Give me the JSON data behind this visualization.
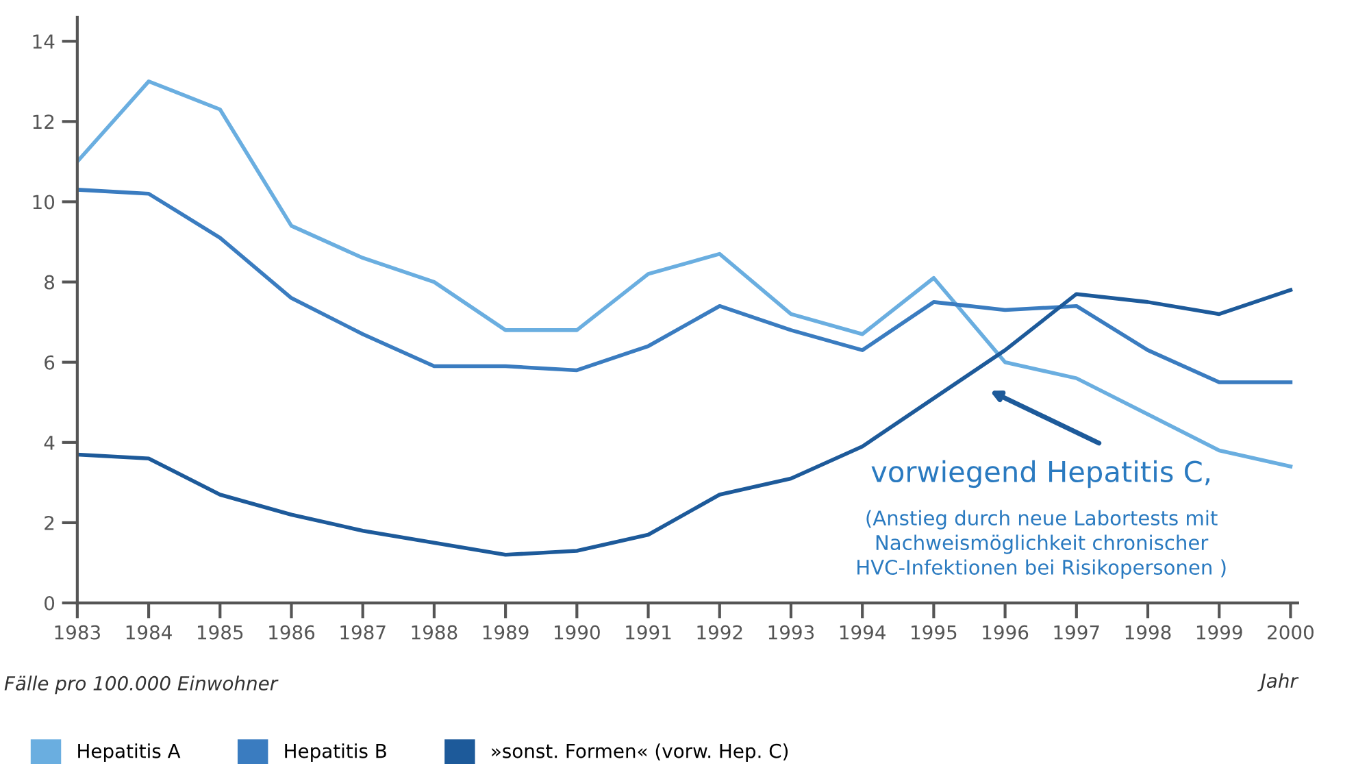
{
  "chart_data": {
    "type": "line",
    "x": [
      1983,
      1984,
      1985,
      1986,
      1987,
      1988,
      1989,
      1990,
      1991,
      1992,
      1993,
      1994,
      1995,
      1996,
      1997,
      1998,
      1999,
      2000
    ],
    "series": [
      {
        "name": "Hepatitis A",
        "color": "#6aaee0",
        "values": [
          11.0,
          13.0,
          12.3,
          9.4,
          8.6,
          8.0,
          6.8,
          6.8,
          8.2,
          8.7,
          7.2,
          6.7,
          8.1,
          6.0,
          5.6,
          4.7,
          3.8,
          3.4
        ]
      },
      {
        "name": "Hepatitis B",
        "color": "#3a7cc0",
        "values": [
          10.3,
          10.2,
          9.1,
          7.6,
          6.7,
          5.9,
          5.9,
          5.8,
          6.4,
          7.4,
          6.8,
          6.3,
          7.5,
          7.3,
          7.4,
          6.3,
          5.5,
          5.5
        ]
      },
      {
        "name": "»sonst. Formen« (vorw. Hep. C)",
        "color": "#1d5a9a",
        "values": [
          3.7,
          3.6,
          2.7,
          2.2,
          1.8,
          1.5,
          1.2,
          1.3,
          1.7,
          2.7,
          3.1,
          3.9,
          5.1,
          6.3,
          7.7,
          7.5,
          7.2,
          7.8
        ]
      }
    ],
    "xlim": [
      1983,
      2000.1
    ],
    "xticks": [
      1983,
      1984,
      1985,
      1986,
      1987,
      1988,
      1989,
      1990,
      1991,
      1992,
      1993,
      1994,
      1995,
      1996,
      1997,
      1998,
      1999,
      2000
    ],
    "ylim": [
      0,
      14.6
    ],
    "yticks": [
      0,
      2,
      4,
      6,
      8,
      10,
      12,
      14
    ],
    "xlabel": "Jahr",
    "ylabel": "Fälle pro 100.000 Einwohner",
    "annotations": [
      "vorwiegend Hepatitis C,",
      "(Anstieg durch neue Labortests mit\nNachweismöglichkeit chronischer\nHVC-Infektionen bei Risikopersonen )"
    ],
    "legend": "bottom",
    "grid": false,
    "marker": "none",
    "line_style": "solid"
  }
}
